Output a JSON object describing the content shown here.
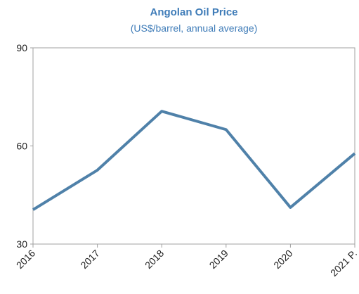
{
  "chart_data": {
    "type": "line",
    "title": "Angolan Oil Price",
    "subtitle": "(US$/barrel, annual average)",
    "categories": [
      "2016",
      "2017",
      "2018",
      "2019",
      "2020",
      "2021 P."
    ],
    "series": [
      {
        "name": "Angolan Oil Price",
        "color": "#4f81a9",
        "values": [
          40.5,
          52.6,
          70.6,
          65,
          41.2,
          57.7
        ]
      }
    ],
    "ylim": [
      30,
      90
    ],
    "yticks": [
      30,
      60,
      90
    ],
    "grid": false
  }
}
